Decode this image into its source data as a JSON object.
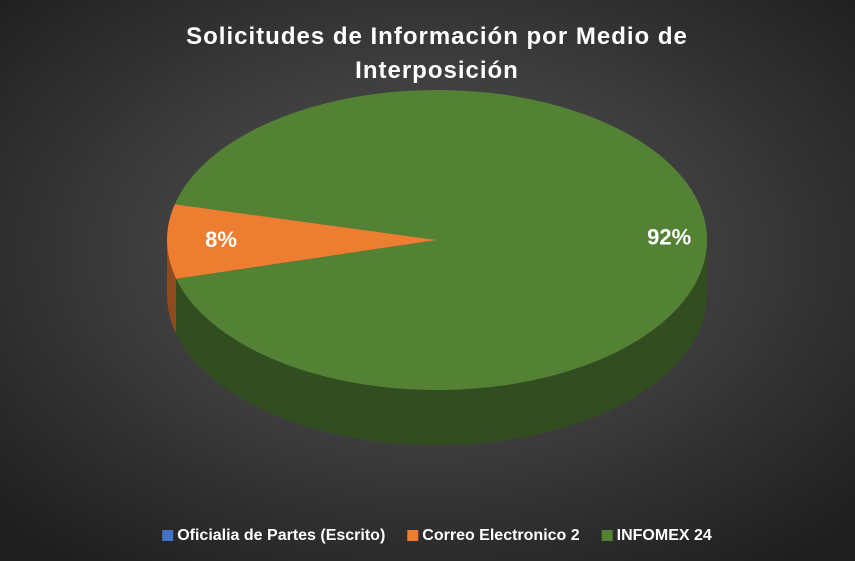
{
  "chart_data": {
    "type": "pie",
    "title": "Solicitudes de Información por Medio de Interposición",
    "categories": [
      "Oficialia de Partes (Escrito)",
      "Correo Electronico 2",
      "INFOMEX 24"
    ],
    "values": [
      0,
      8,
      92
    ],
    "value_labels": [
      null,
      "8%",
      "92%"
    ],
    "colors": [
      "#4472c4",
      "#ed7d31",
      "#548235"
    ],
    "legend": "bottom"
  }
}
